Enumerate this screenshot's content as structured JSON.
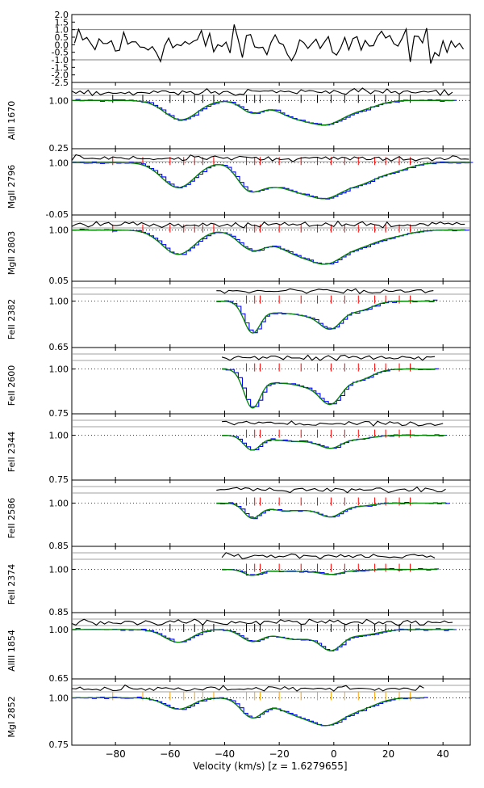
{
  "chart_data": {
    "type": "line",
    "xlabel": "Velocity (km/s) [z = 1.6279655]",
    "xlim": [
      -96,
      50
    ],
    "xticks": [
      -80,
      -60,
      -40,
      -20,
      0,
      20,
      40
    ],
    "colors": {
      "data": "#0000ff",
      "model": "#008000",
      "residual": "#000000",
      "grid": "#808080",
      "tick_red": "#ff0000",
      "tick_orange": "#ffa500"
    },
    "residual_panel": {
      "yticks": [
        "2.0",
        "1.5",
        "1.0",
        "0.5",
        "0.0",
        "-0.5",
        "-1.0",
        "-1.5",
        "-2.0",
        "-2.5"
      ],
      "ylim": [
        -2.5,
        2.0
      ],
      "hlines": [
        1.0,
        -1.0
      ]
    },
    "panels": [
      {
        "label": "AlII 1670",
        "ymin_label": "0.25",
        "ylim": [
          0.25,
          1.28
        ],
        "xrange": [
          -96,
          44
        ],
        "tick_color": "#000000",
        "components": [
          -81,
          -70,
          -60,
          -55,
          -51,
          -48,
          -44,
          -32,
          -29,
          -27,
          -20,
          -12,
          -6,
          -1,
          4,
          9,
          15,
          19,
          24,
          28
        ],
        "absorbers": [
          [
            -56,
            0.3,
            6
          ],
          [
            -30,
            0.18,
            4
          ],
          [
            -14,
            0.25,
            7
          ],
          [
            -2,
            0.3,
            6
          ],
          [
            10,
            0.12,
            6
          ]
        ]
      },
      {
        "label": "MgII 2796",
        "ymin_label": "-0.05",
        "ylim": [
          -0.05,
          1.28
        ],
        "xrange": [
          -96,
          50
        ],
        "tick_color": "#ff0000",
        "components": [
          -81,
          -70,
          -60,
          -55,
          -51,
          -48,
          -44,
          -32,
          -29,
          -27,
          -20,
          -12,
          -6,
          -1,
          4,
          9,
          15,
          19,
          24,
          28
        ],
        "absorbers": [
          [
            -57,
            0.5,
            6
          ],
          [
            -32,
            0.38,
            4
          ],
          [
            -26,
            0.3,
            5
          ],
          [
            -14,
            0.5,
            7
          ],
          [
            -2,
            0.55,
            6
          ],
          [
            10,
            0.35,
            6
          ],
          [
            22,
            0.15,
            6
          ]
        ]
      },
      {
        "label": "MgII 2803",
        "ymin_label": "0.05",
        "ylim": [
          0.05,
          1.28
        ],
        "xrange": [
          -96,
          48
        ],
        "tick_color": "#ff0000",
        "components": [
          -81,
          -70,
          -60,
          -55,
          -51,
          -48,
          -44,
          -32,
          -29,
          -27,
          -20,
          -12,
          -6,
          -1,
          4,
          9,
          15,
          19,
          24,
          28
        ],
        "absorbers": [
          [
            -57,
            0.45,
            6
          ],
          [
            -30,
            0.35,
            5
          ],
          [
            -14,
            0.4,
            7
          ],
          [
            -2,
            0.5,
            6
          ],
          [
            10,
            0.25,
            6
          ],
          [
            22,
            0.1,
            6
          ]
        ]
      },
      {
        "label": "FeII 2382",
        "ymin_label": "0.65",
        "ylim": [
          0.65,
          1.15
        ],
        "xrange": [
          -43,
          37
        ],
        "tick_color": "#ff0000",
        "components": [
          -32,
          -29,
          -27,
          -20,
          -12,
          -6,
          -1,
          4,
          9,
          15,
          19,
          24,
          28
        ],
        "absorbers": [
          [
            -30,
            0.22,
            3
          ],
          [
            -22,
            0.07,
            5
          ],
          [
            -10,
            0.1,
            6
          ],
          [
            -1,
            0.17,
            4
          ],
          [
            9,
            0.07,
            5
          ]
        ]
      },
      {
        "label": "FeII 2600",
        "ymin_label": "0.75",
        "ylim": [
          0.75,
          1.12
        ],
        "xrange": [
          -41,
          37
        ],
        "tick_color": "#ff0000",
        "components": [
          -32,
          -29,
          -27,
          -20,
          -12,
          -6,
          -1,
          4,
          9,
          15,
          19,
          24,
          28
        ],
        "absorbers": [
          [
            -30,
            0.2,
            3
          ],
          [
            -22,
            0.06,
            5
          ],
          [
            -10,
            0.09,
            6
          ],
          [
            -1,
            0.16,
            4
          ],
          [
            9,
            0.06,
            5
          ]
        ]
      },
      {
        "label": "FeII 2344",
        "ymin_label": "0.75",
        "ylim": [
          0.75,
          1.12
        ],
        "xrange": [
          -41,
          41
        ],
        "tick_color": "#ff0000",
        "components": [
          -32,
          -29,
          -27,
          -20,
          -12,
          -6,
          -1,
          4,
          9,
          15,
          19,
          24,
          28
        ],
        "absorbers": [
          [
            -30,
            0.08,
            3
          ],
          [
            -20,
            0.02,
            5
          ],
          [
            -10,
            0.03,
            6
          ],
          [
            -1,
            0.06,
            4
          ],
          [
            9,
            0.02,
            5
          ]
        ]
      },
      {
        "label": "FeII 2586",
        "ymin_label": "0.85",
        "ylim": [
          0.85,
          1.08
        ],
        "xrange": [
          -43,
          41
        ],
        "tick_color": "#ff0000",
        "components": [
          -32,
          -29,
          -27,
          -20,
          -12,
          -6,
          -1,
          4,
          9,
          15,
          19,
          24,
          28
        ],
        "absorbers": [
          [
            -30,
            0.05,
            3
          ],
          [
            -20,
            0.02,
            5
          ],
          [
            -10,
            0.02,
            6
          ],
          [
            -1,
            0.04,
            4
          ],
          [
            9,
            0.01,
            5
          ]
        ]
      },
      {
        "label": "FeII 2374",
        "ymin_label": "0.85",
        "ylim": [
          0.85,
          1.08
        ],
        "xrange": [
          -41,
          38
        ],
        "tick_color": "#ff0000",
        "components": [
          -32,
          -29,
          -27,
          -20,
          -12,
          -6,
          -1,
          4,
          9,
          15,
          19,
          24,
          28
        ],
        "absorbers": [
          [
            -30,
            0.02,
            3
          ],
          [
            -20,
            0.005,
            5
          ],
          [
            -10,
            0.006,
            6
          ],
          [
            -1,
            0.015,
            4
          ],
          [
            9,
            0.003,
            5
          ]
        ]
      },
      {
        "label": "AlIII 1854",
        "ymin_label": "0.65",
        "ylim": [
          0.65,
          1.12
        ],
        "xrange": [
          -96,
          44
        ],
        "tick_color": "#000000",
        "components": [
          -60,
          -55,
          -51,
          -48,
          -44,
          -32,
          -29,
          -27,
          -20,
          -12,
          -6,
          -1,
          4,
          9,
          15,
          19,
          24,
          28
        ],
        "absorbers": [
          [
            -57,
            0.09,
            5
          ],
          [
            -30,
            0.08,
            4
          ],
          [
            -14,
            0.07,
            7
          ],
          [
            -1,
            0.13,
            4
          ],
          [
            10,
            0.04,
            6
          ]
        ]
      },
      {
        "label": "MgI 2852",
        "ymin_label": "0.75",
        "ylim": [
          0.75,
          1.1
        ],
        "xrange": [
          -96,
          33
        ],
        "tick_color": "#ffa500",
        "components": [
          -81,
          -70,
          -60,
          -55,
          -51,
          -48,
          -44,
          -32,
          -29,
          -27,
          -20,
          -12,
          -6,
          -1,
          4,
          9,
          15,
          19,
          24,
          28
        ],
        "absorbers": [
          [
            -57,
            0.06,
            5
          ],
          [
            -30,
            0.1,
            4
          ],
          [
            -14,
            0.08,
            7
          ],
          [
            -2,
            0.12,
            6
          ],
          [
            10,
            0.05,
            6
          ]
        ]
      }
    ]
  }
}
